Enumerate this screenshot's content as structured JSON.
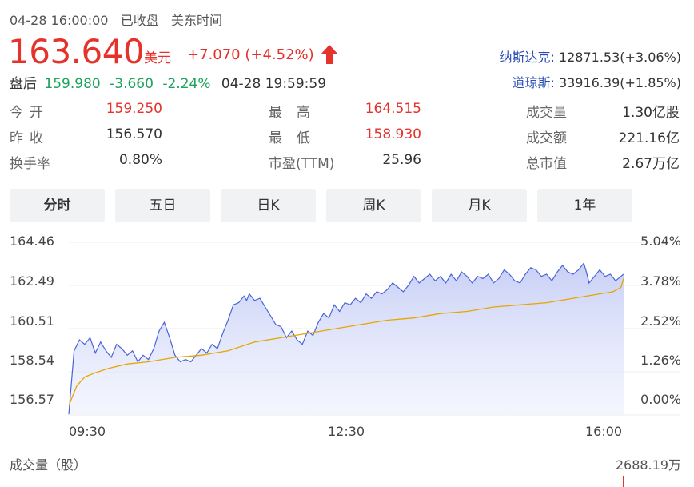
{
  "header": {
    "datetime": "04-28 16:00:00",
    "status": "已收盘",
    "timezone": "美东时间"
  },
  "quote": {
    "price": "163.640",
    "currency": "美元",
    "change": "+7.070",
    "change_pct": "(+4.52%)",
    "direction_icon": "arrow-up-icon"
  },
  "after_hours": {
    "label": "盘后",
    "price": "159.980",
    "change": "-3.660",
    "change_pct": "-2.24%",
    "time": "04-28 19:59:59"
  },
  "indices": [
    {
      "name": "纳斯达克:",
      "value": "12871.53(+3.06%)"
    },
    {
      "name": "道琼斯:",
      "value": "33916.39(+1.85%)"
    }
  ],
  "stats": {
    "open_label": "今开",
    "open_value": "159.250",
    "prev_label": "昨收",
    "prev_value": "156.570",
    "turnover_label": "换手率",
    "turnover_value": "0.80%",
    "high_label": "最高",
    "high_value": "164.515",
    "low_label": "最低",
    "low_value": "158.930",
    "pe_label": "市盈(TTM)",
    "pe_value": "25.96",
    "volume_label": "成交量",
    "volume_value": "1.30亿股",
    "amount_label": "成交额",
    "amount_value": "221.16亿",
    "mktcap_label": "总市值",
    "mktcap_value": "2.67万亿"
  },
  "tabs": [
    "分时",
    "五日",
    "日K",
    "周K",
    "月K",
    "1年"
  ],
  "active_tab": 0,
  "chart_data": {
    "type": "area",
    "y_left_ticks": [
      "164.46",
      "162.49",
      "160.51",
      "158.54",
      "156.57"
    ],
    "y_right_ticks": [
      "5.04%",
      "3.78%",
      "2.52%",
      "1.26%",
      "0.00%"
    ],
    "x_ticks": [
      "09:30",
      "12:30",
      "16:00"
    ],
    "ylim": [
      156.57,
      164.46
    ],
    "series": [
      {
        "type": "price",
        "color": "#4a64d8",
        "points": [
          [
            0,
            156.6
          ],
          [
            2,
            159.5
          ],
          [
            4,
            160.0
          ],
          [
            6,
            159.8
          ],
          [
            8,
            160.1
          ],
          [
            10,
            159.4
          ],
          [
            12,
            159.9
          ],
          [
            14,
            159.5
          ],
          [
            16,
            159.2
          ],
          [
            18,
            159.8
          ],
          [
            20,
            159.6
          ],
          [
            22,
            159.3
          ],
          [
            24,
            159.5
          ],
          [
            26,
            159.0
          ],
          [
            28,
            159.3
          ],
          [
            30,
            159.1
          ],
          [
            32,
            159.6
          ],
          [
            34,
            160.4
          ],
          [
            36,
            160.8
          ],
          [
            38,
            160.1
          ],
          [
            40,
            159.3
          ],
          [
            42,
            159.0
          ],
          [
            44,
            159.1
          ],
          [
            46,
            159.0
          ],
          [
            48,
            159.3
          ],
          [
            50,
            159.6
          ],
          [
            52,
            159.4
          ],
          [
            54,
            159.8
          ],
          [
            56,
            159.6
          ],
          [
            58,
            160.3
          ],
          [
            60,
            160.9
          ],
          [
            62,
            161.6
          ],
          [
            64,
            161.7
          ],
          [
            66,
            162.0
          ],
          [
            67,
            161.8
          ],
          [
            68,
            162.1
          ],
          [
            70,
            161.8
          ],
          [
            72,
            161.9
          ],
          [
            74,
            161.5
          ],
          [
            76,
            161.1
          ],
          [
            78,
            160.7
          ],
          [
            80,
            160.6
          ],
          [
            82,
            160.1
          ],
          [
            84,
            160.4
          ],
          [
            86,
            160.0
          ],
          [
            88,
            159.8
          ],
          [
            90,
            160.4
          ],
          [
            92,
            160.2
          ],
          [
            94,
            160.8
          ],
          [
            96,
            161.2
          ],
          [
            98,
            161.0
          ],
          [
            100,
            161.6
          ],
          [
            102,
            161.3
          ],
          [
            104,
            161.7
          ],
          [
            106,
            161.6
          ],
          [
            108,
            161.9
          ],
          [
            110,
            161.7
          ],
          [
            112,
            162.1
          ],
          [
            114,
            161.9
          ],
          [
            116,
            162.2
          ],
          [
            118,
            162.1
          ],
          [
            120,
            162.3
          ],
          [
            122,
            162.6
          ],
          [
            124,
            162.4
          ],
          [
            126,
            162.2
          ],
          [
            128,
            162.5
          ],
          [
            130,
            162.9
          ],
          [
            132,
            162.6
          ],
          [
            134,
            162.8
          ],
          [
            136,
            163.0
          ],
          [
            138,
            162.7
          ],
          [
            140,
            162.9
          ],
          [
            142,
            162.6
          ],
          [
            144,
            163.0
          ],
          [
            146,
            162.7
          ],
          [
            148,
            163.1
          ],
          [
            150,
            162.9
          ],
          [
            152,
            162.6
          ],
          [
            154,
            162.9
          ],
          [
            156,
            162.8
          ],
          [
            158,
            163.0
          ],
          [
            160,
            162.6
          ],
          [
            162,
            162.8
          ],
          [
            164,
            163.2
          ],
          [
            166,
            163.0
          ],
          [
            168,
            162.7
          ],
          [
            170,
            162.6
          ],
          [
            172,
            163.0
          ],
          [
            174,
            163.3
          ],
          [
            176,
            163.2
          ],
          [
            178,
            162.9
          ],
          [
            180,
            163.0
          ],
          [
            182,
            162.7
          ],
          [
            184,
            163.1
          ],
          [
            186,
            163.4
          ],
          [
            188,
            163.1
          ],
          [
            190,
            163.0
          ],
          [
            192,
            163.2
          ],
          [
            194,
            163.5
          ],
          [
            195,
            163.1
          ],
          [
            196,
            162.6
          ],
          [
            198,
            162.9
          ],
          [
            200,
            163.2
          ],
          [
            202,
            162.9
          ],
          [
            204,
            163.0
          ],
          [
            206,
            162.7
          ],
          [
            208,
            162.9
          ],
          [
            209,
            163.0
          ]
        ]
      },
      {
        "type": "average",
        "color": "#e8a500",
        "points": [
          [
            0,
            157.0
          ],
          [
            3,
            157.9
          ],
          [
            6,
            158.3
          ],
          [
            10,
            158.5
          ],
          [
            15,
            158.7
          ],
          [
            22,
            158.9
          ],
          [
            30,
            159.0
          ],
          [
            40,
            159.2
          ],
          [
            50,
            159.3
          ],
          [
            60,
            159.5
          ],
          [
            70,
            159.9
          ],
          [
            80,
            160.1
          ],
          [
            90,
            160.3
          ],
          [
            100,
            160.5
          ],
          [
            110,
            160.7
          ],
          [
            120,
            160.9
          ],
          [
            130,
            161.0
          ],
          [
            140,
            161.2
          ],
          [
            150,
            161.3
          ],
          [
            160,
            161.5
          ],
          [
            170,
            161.6
          ],
          [
            180,
            161.7
          ],
          [
            190,
            161.9
          ],
          [
            200,
            162.1
          ],
          [
            205,
            162.2
          ],
          [
            208,
            162.4
          ],
          [
            209,
            162.8
          ]
        ]
      }
    ],
    "volume_label": "成交量（股）",
    "volume_value": "2688.19万"
  }
}
